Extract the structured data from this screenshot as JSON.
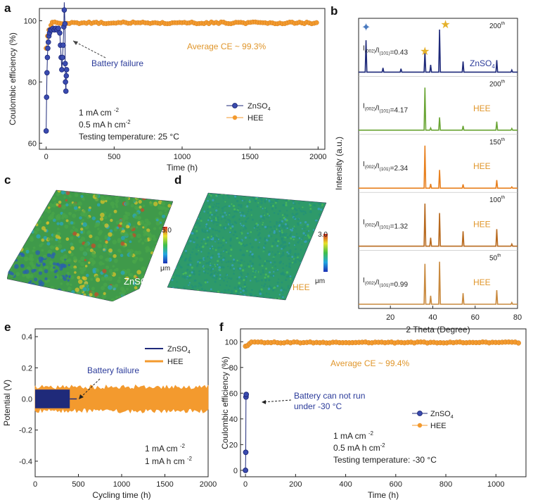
{
  "panel_labels": {
    "a": "a",
    "b": "b",
    "c": "c",
    "d": "d",
    "e": "e",
    "f": "f"
  },
  "colors": {
    "znso4": "#1f2a7a",
    "hee": "#f39a2e",
    "green": "#6aa535",
    "orange": "#e8801f",
    "brown": "#b86a1f",
    "tan": "#c98a3f",
    "annot_znso4": "#2b3b9a",
    "annot_hee": "#e0962b"
  },
  "chart_data": [
    {
      "id": "a",
      "type": "scatter",
      "xlabel": "Time (h)",
      "ylabel": "Coulombic efficiency (%)",
      "xlim": [
        -50,
        2050
      ],
      "ylim": [
        58,
        104
      ],
      "xticks": [
        0,
        500,
        1000,
        1500,
        2000
      ],
      "yticks": [
        60,
        80,
        100
      ],
      "series": [
        {
          "name": "ZnSO4",
          "legend_main": "ZnSO",
          "legend_sub": "4",
          "color": "#1f2a7a",
          "points": [
            [
              0,
              64
            ],
            [
              3,
              75
            ],
            [
              6,
              83
            ],
            [
              9,
              88
            ],
            [
              12,
              91
            ],
            [
              16,
              93
            ],
            [
              20,
              95
            ],
            [
              25,
              96
            ],
            [
              30,
              97
            ],
            [
              40,
              97
            ],
            [
              50,
              97.5
            ],
            [
              60,
              97
            ],
            [
              70,
              97.5
            ],
            [
              80,
              97
            ],
            [
              90,
              97.5
            ],
            [
              100,
              96
            ],
            [
              105,
              92
            ],
            [
              110,
              88
            ],
            [
              115,
              84
            ],
            [
              120,
              88
            ],
            [
              125,
              92
            ],
            [
              130,
              98
            ],
            [
              133,
              106
            ],
            [
              138,
              99
            ],
            [
              140,
              86
            ],
            [
              142,
              80
            ],
            [
              145,
              77
            ],
            [
              148,
              82
            ],
            [
              150,
              84
            ]
          ]
        },
        {
          "name": "HEE",
          "color": "#f39a2e",
          "range": [
            0,
            1990
          ],
          "step": 18,
          "base_value": 99.3,
          "start": [
            [
              0,
              91
            ],
            [
              10,
              95
            ],
            [
              20,
              97
            ],
            [
              35,
              98.5
            ]
          ]
        }
      ],
      "annotations": {
        "failure": "Battery failure",
        "average": "Average CE ~ 99.3%"
      },
      "conditions": [
        "1 mA cm",
        "0.5 mA h cm",
        "Testing temperature: 25 °C"
      ],
      "condition_sup": "-2"
    },
    {
      "id": "b",
      "type": "line",
      "xlabel": "2 Theta (Degree)",
      "ylabel": "Intensity (a.u.)",
      "xlim": [
        5,
        80
      ],
      "xticks": [
        20,
        40,
        60,
        80
      ],
      "peak_positions": [
        8.5,
        16.5,
        25,
        36.3,
        39,
        43.2,
        54.3,
        70.2,
        77.3
      ],
      "traces": [
        {
          "label": "ZnSO4",
          "label_main": "ZnSO",
          "label_sub": "4",
          "cycle": "200",
          "cycle_sup": "th",
          "ratio": "0.43",
          "color": "#1f2a7a",
          "peaks": [
            [
              8.5,
              0.75
            ],
            [
              16.5,
              0.1
            ],
            [
              25,
              0.08
            ],
            [
              36.3,
              0.5
            ],
            [
              39,
              0.17
            ],
            [
              43.2,
              1.0
            ],
            [
              54.3,
              0.25
            ],
            [
              70.2,
              0.28
            ],
            [
              77.3,
              0.05
            ]
          ]
        },
        {
          "label": "HEE",
          "cycle": "200",
          "cycle_sup": "th",
          "ratio": "4.17",
          "color": "#6aa535",
          "peaks": [
            [
              36.3,
              1.0
            ],
            [
              39,
              0.05
            ],
            [
              43.2,
              0.3
            ],
            [
              54.3,
              0.1
            ],
            [
              70.2,
              0.2
            ],
            [
              77.3,
              0.04
            ]
          ]
        },
        {
          "label": "HEE",
          "cycle": "150",
          "cycle_sup": "th",
          "ratio": "2.34",
          "color": "#e8801f",
          "peaks": [
            [
              36.3,
              1.0
            ],
            [
              39,
              0.1
            ],
            [
              43.2,
              0.43
            ],
            [
              54.3,
              0.09
            ],
            [
              70.2,
              0.19
            ],
            [
              77.3,
              0.03
            ]
          ]
        },
        {
          "label": "HEE",
          "cycle": "100",
          "cycle_sup": "th",
          "ratio": "1.32",
          "color": "#b86a1f",
          "peaks": [
            [
              36.3,
              1.0
            ],
            [
              39,
              0.2
            ],
            [
              43.2,
              0.78
            ],
            [
              54.3,
              0.35
            ],
            [
              70.2,
              0.4
            ],
            [
              77.3,
              0.05
            ]
          ]
        },
        {
          "label": "HEE",
          "cycle": "50",
          "cycle_sup": "th",
          "ratio": "0.99",
          "color": "#c98a3f",
          "peaks": [
            [
              36.3,
              0.95
            ],
            [
              39,
              0.2
            ],
            [
              43.2,
              1.0
            ],
            [
              54.3,
              0.26
            ],
            [
              70.2,
              0.33
            ],
            [
              77.3,
              0.04
            ]
          ]
        }
      ],
      "ratio_prefix": "I",
      "ratio_sub1": "(002)",
      "ratio_sub2": "(101)",
      "markers": [
        {
          "x": 8.5,
          "symbol": "✦",
          "color": "#4a7abf"
        },
        {
          "x": 36.3,
          "symbol": "★",
          "color": "#e5b12b"
        },
        {
          "x": 46,
          "symbol": "★",
          "color": "#e5b12b"
        }
      ]
    },
    {
      "id": "e",
      "type": "area",
      "xlabel": "Cycling time (h)",
      "ylabel": "Potential (V)",
      "xlim": [
        0,
        2000
      ],
      "ylim": [
        -0.5,
        0.45
      ],
      "xticks": [
        0,
        500,
        1000,
        1500,
        2000
      ],
      "yticks": [
        -0.4,
        -0.2,
        0.0,
        0.2,
        0.4
      ],
      "series": [
        {
          "name": "ZnSO4",
          "legend_main": "ZnSO",
          "legend_sub": "4",
          "color": "#1f2a7a",
          "range": [
            0,
            400
          ],
          "band": [
            -0.06,
            0.06
          ]
        },
        {
          "name": "HEE",
          "color": "#f39a2e",
          "range": [
            0,
            2000
          ],
          "band": [
            -0.09,
            0.09
          ]
        }
      ],
      "annotations": {
        "failure": "Battery failure"
      },
      "conditions": [
        "1 mA cm",
        "1 mA h cm"
      ],
      "condition_sup": "-2"
    },
    {
      "id": "f",
      "type": "scatter",
      "xlabel": "Time (h)",
      "ylabel": "Coulombic efficiency (%)",
      "xlim": [
        -20,
        1120
      ],
      "ylim": [
        -5,
        110
      ],
      "xticks": [
        0,
        200,
        400,
        600,
        800,
        1000
      ],
      "yticks": [
        0,
        20,
        40,
        60,
        80,
        100
      ],
      "series": [
        {
          "name": "ZnSO4",
          "legend_main": "ZnSO",
          "legend_sub": "4",
          "color": "#1f2a7a",
          "points": [
            [
              0,
              0
            ],
            [
              1,
              14
            ],
            [
              2,
              57
            ],
            [
              3,
              59
            ]
          ]
        },
        {
          "name": "HEE",
          "color": "#f39a2e",
          "range": [
            0,
            1100
          ],
          "step": 13,
          "base_value": 99.4,
          "start": [
            [
              0,
              96.5
            ],
            [
              8,
              97
            ],
            [
              16,
              98.5
            ]
          ]
        }
      ],
      "annotations": {
        "average": "Average CE ~ 99.4%",
        "cannot_run_1": "Battery can not run",
        "cannot_run_2": "under -30 °C"
      },
      "conditions": [
        "1 mA cm",
        "0.5 mA h cm",
        "Testing temperature: -30 °C"
      ],
      "condition_sup": "-2"
    }
  ],
  "surfaces": {
    "c": {
      "scale_max": "5.0",
      "unit": "μm",
      "label_main": "ZnSO",
      "label_sub": "4"
    },
    "d": {
      "scale_max": "3.0",
      "unit": "μm",
      "label": "HEE"
    }
  }
}
